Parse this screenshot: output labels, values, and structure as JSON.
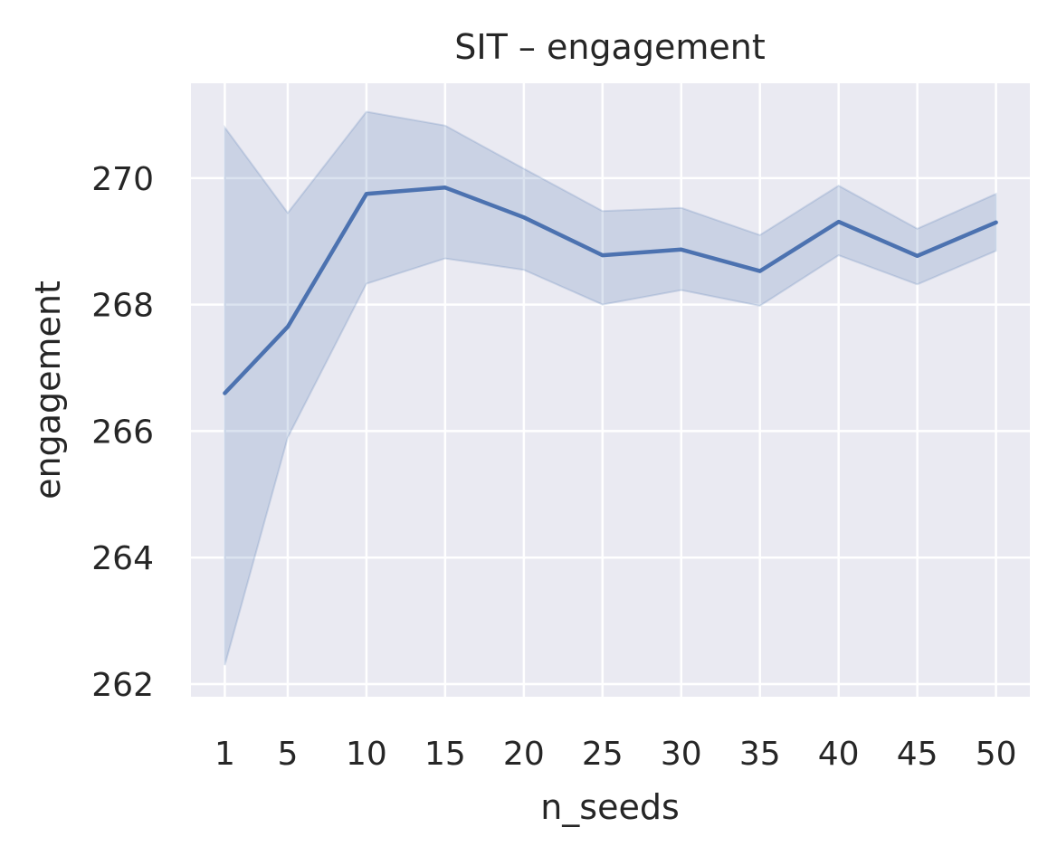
{
  "chart_data": {
    "type": "line",
    "title": "SIT – engagement",
    "xlabel": "n_seeds",
    "ylabel": "engagement",
    "x": [
      1,
      5,
      10,
      15,
      20,
      25,
      30,
      35,
      40,
      45,
      50
    ],
    "x_tick_labels": [
      "1",
      "5",
      "10",
      "15",
      "20",
      "25",
      "30",
      "35",
      "40",
      "45",
      "50"
    ],
    "y_ticks": [
      262,
      264,
      266,
      268,
      270
    ],
    "y_tick_labels": [
      "262",
      "264",
      "266",
      "268",
      "270"
    ],
    "ylim": [
      261.8,
      271.5
    ],
    "xlim": [
      -1.15,
      52.15
    ],
    "grid": true,
    "series": [
      {
        "values": [
          266.6,
          267.65,
          269.75,
          269.85,
          269.38,
          268.78,
          268.87,
          268.53,
          269.31,
          268.77,
          269.3
        ],
        "ci_lower": [
          262.3,
          265.9,
          268.33,
          268.73,
          268.55,
          268.0,
          268.23,
          267.98,
          268.78,
          268.32,
          268.85
        ],
        "ci_upper": [
          270.8,
          269.45,
          271.05,
          270.83,
          270.15,
          269.48,
          269.53,
          269.1,
          269.88,
          269.2,
          269.75
        ],
        "color": "#4c72b0"
      }
    ],
    "colors": {
      "background": "#eaeaf2",
      "grid": "#ffffff",
      "line": "#4c72b0",
      "band": "#4c72b0",
      "text": "#262626"
    }
  }
}
